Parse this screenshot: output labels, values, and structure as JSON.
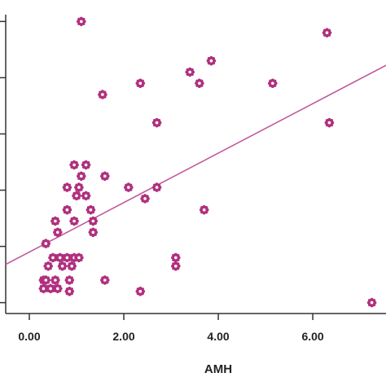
{
  "chart_data": {
    "type": "scatter",
    "title": "",
    "xlabel": "AMH",
    "ylabel": "",
    "xlim": [
      -0.5,
      7.55
    ],
    "ylim": [
      -0.15,
      5.15
    ],
    "x_ticks": [
      0,
      2,
      4,
      6
    ],
    "x_tick_labels": [
      "0.00",
      "2.00",
      "4.00",
      "6.00"
    ],
    "y_ticks": [
      0,
      1,
      2,
      3,
      4,
      5
    ],
    "y_tick_labels": [],
    "grid": false,
    "legend": "none",
    "colors": {
      "marker": "#b0307e",
      "fit_line": "#c0589a",
      "axis": "#333333"
    },
    "series": [
      {
        "points": [
          [
            1.1,
            5.0
          ],
          [
            6.3,
            4.8
          ],
          [
            3.85,
            4.3
          ],
          [
            3.4,
            4.1
          ],
          [
            2.35,
            3.9
          ],
          [
            3.6,
            3.9
          ],
          [
            5.15,
            3.9
          ],
          [
            1.55,
            3.7
          ],
          [
            2.7,
            3.2
          ],
          [
            6.35,
            3.2
          ],
          [
            0.95,
            2.45
          ],
          [
            1.2,
            2.45
          ],
          [
            1.1,
            2.25
          ],
          [
            1.6,
            2.25
          ],
          [
            0.8,
            2.05
          ],
          [
            1.05,
            2.05
          ],
          [
            2.1,
            2.05
          ],
          [
            2.7,
            2.05
          ],
          [
            1.0,
            1.9
          ],
          [
            1.2,
            1.9
          ],
          [
            2.45,
            1.85
          ],
          [
            0.8,
            1.65
          ],
          [
            1.3,
            1.65
          ],
          [
            3.7,
            1.65
          ],
          [
            0.55,
            1.45
          ],
          [
            0.95,
            1.45
          ],
          [
            1.35,
            1.45
          ],
          [
            0.6,
            1.25
          ],
          [
            1.35,
            1.25
          ],
          [
            0.35,
            1.05
          ],
          [
            0.5,
            0.8
          ],
          [
            0.65,
            0.8
          ],
          [
            0.8,
            0.8
          ],
          [
            0.95,
            0.8
          ],
          [
            1.05,
            0.8
          ],
          [
            3.1,
            0.8
          ],
          [
            0.4,
            0.65
          ],
          [
            0.7,
            0.65
          ],
          [
            0.9,
            0.65
          ],
          [
            3.1,
            0.65
          ],
          [
            0.3,
            0.4
          ],
          [
            0.35,
            0.4
          ],
          [
            0.55,
            0.4
          ],
          [
            0.85,
            0.4
          ],
          [
            1.6,
            0.4
          ],
          [
            0.3,
            0.25
          ],
          [
            0.45,
            0.25
          ],
          [
            0.6,
            0.25
          ],
          [
            0.85,
            0.2
          ],
          [
            2.35,
            0.2
          ],
          [
            7.25,
            0.0
          ]
        ]
      }
    ],
    "fit_line": {
      "x": [
        -0.5,
        7.55
      ],
      "y": [
        0.68,
        4.22
      ]
    }
  }
}
